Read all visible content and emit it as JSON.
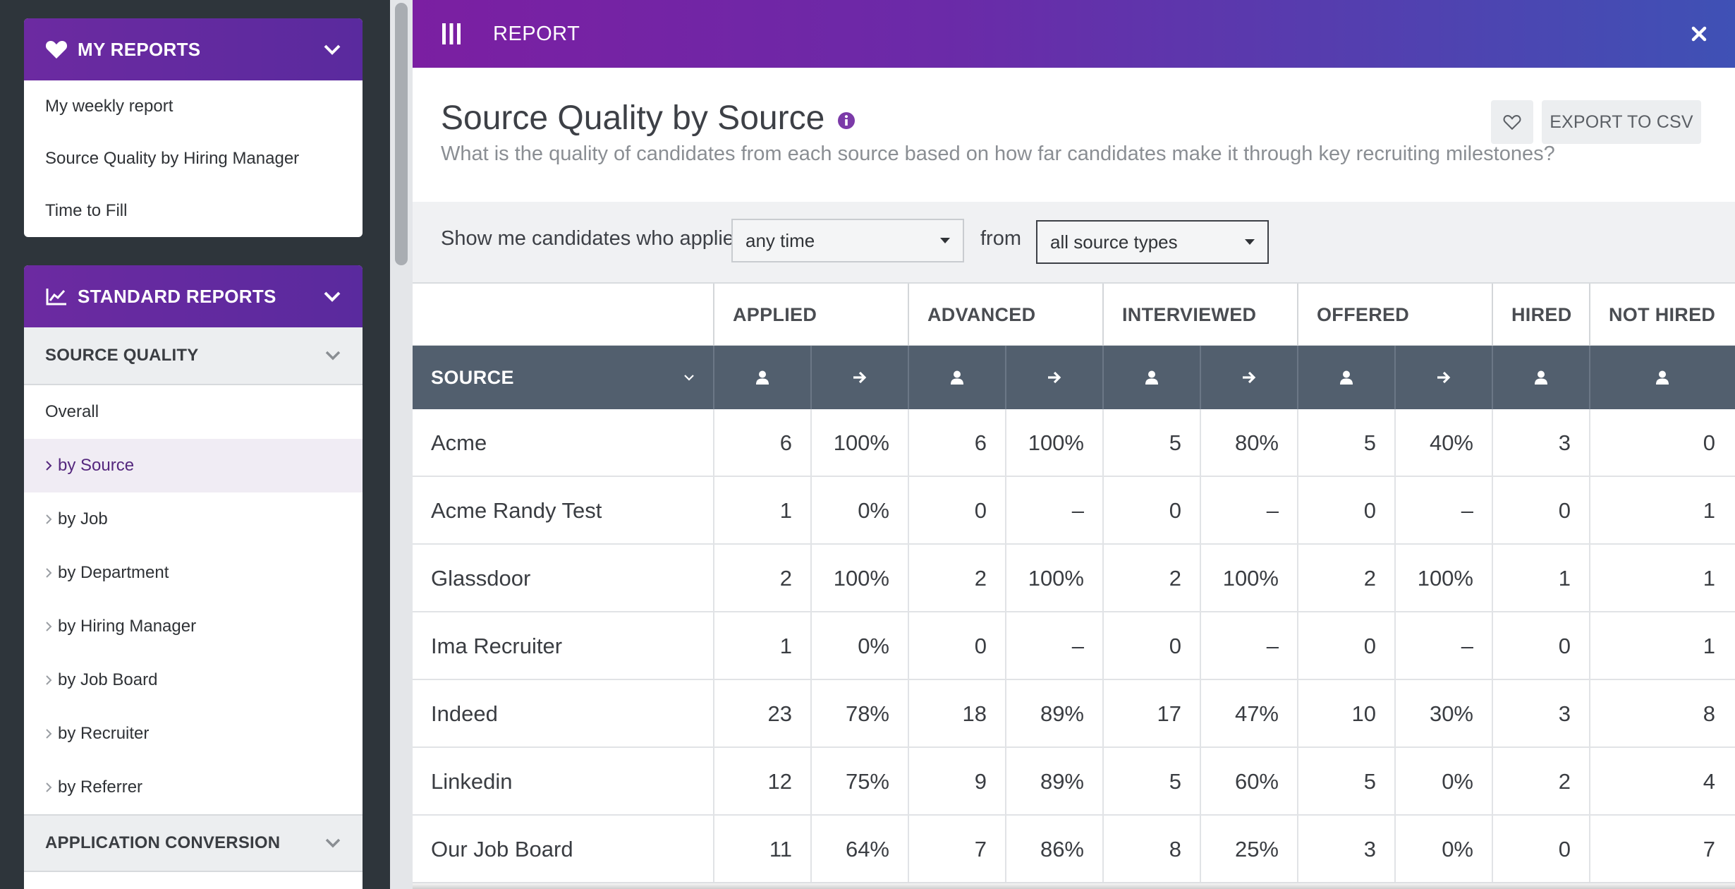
{
  "sidebar": {
    "my_reports": {
      "title": "MY REPORTS",
      "items": [
        "My weekly report",
        "Source Quality by Hiring Manager",
        "Time to Fill"
      ]
    },
    "standard_reports": {
      "title": "STANDARD REPORTS",
      "section_title": "SOURCE QUALITY",
      "items": [
        {
          "label": "Overall",
          "active": false,
          "caret": false
        },
        {
          "label": "by Source",
          "active": true,
          "caret": true
        },
        {
          "label": "by Job",
          "active": false,
          "caret": true
        },
        {
          "label": "by Department",
          "active": false,
          "caret": true
        },
        {
          "label": "by Hiring Manager",
          "active": false,
          "caret": true
        },
        {
          "label": "by Job Board",
          "active": false,
          "caret": true
        },
        {
          "label": "by Recruiter",
          "active": false,
          "caret": true
        },
        {
          "label": "by Referrer",
          "active": false,
          "caret": true
        }
      ],
      "next_section_title": "APPLICATION CONVERSION"
    }
  },
  "topbar": {
    "title": "REPORT"
  },
  "header": {
    "title": "Source Quality by Source",
    "subtitle": "What is the quality of candidates from each source based on how far candidates make it through key recruiting milestones?",
    "export_label": "EXPORT TO CSV"
  },
  "filters": {
    "prefix": "Show me candidates who applied",
    "time_value": "any time",
    "from_label": "from",
    "source_value": "all source types"
  },
  "table": {
    "source_header": "SOURCE",
    "groups": [
      "APPLIED",
      "ADVANCED",
      "INTERVIEWED",
      "OFFERED",
      "HIRED",
      "NOT HIRED"
    ],
    "rows": [
      {
        "name": "Acme",
        "values": [
          "6",
          "100%",
          "6",
          "100%",
          "5",
          "80%",
          "5",
          "40%",
          "3",
          "0"
        ]
      },
      {
        "name": "Acme Randy Test",
        "values": [
          "1",
          "0%",
          "0",
          "–",
          "0",
          "–",
          "0",
          "–",
          "0",
          "1"
        ]
      },
      {
        "name": "Glassdoor",
        "values": [
          "2",
          "100%",
          "2",
          "100%",
          "2",
          "100%",
          "2",
          "100%",
          "1",
          "1"
        ]
      },
      {
        "name": "Ima Recruiter",
        "values": [
          "1",
          "0%",
          "0",
          "–",
          "0",
          "–",
          "0",
          "–",
          "0",
          "1"
        ]
      },
      {
        "name": "Indeed",
        "values": [
          "23",
          "78%",
          "18",
          "89%",
          "17",
          "47%",
          "10",
          "30%",
          "3",
          "8"
        ]
      },
      {
        "name": "Linkedin",
        "values": [
          "12",
          "75%",
          "9",
          "89%",
          "5",
          "60%",
          "5",
          "0%",
          "2",
          "4"
        ]
      },
      {
        "name": "Our Job Board",
        "values": [
          "11",
          "64%",
          "7",
          "86%",
          "8",
          "25%",
          "3",
          "0%",
          "0",
          "7"
        ]
      }
    ]
  },
  "colors": {
    "accent": "#6c2aa1",
    "table_header": "#525f6e",
    "active_item": "#55287e"
  }
}
